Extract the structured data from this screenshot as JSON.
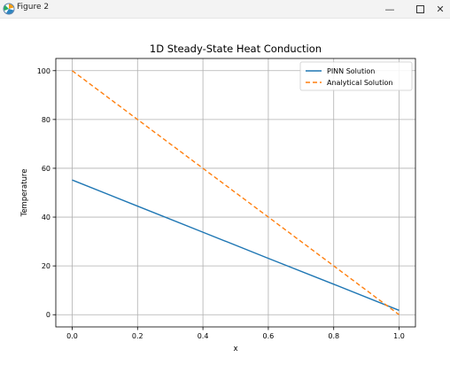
{
  "window": {
    "title": "Figure 2",
    "minimize_glyph": "—",
    "close_glyph": "✕",
    "icon": "matplotlib-figure-icon"
  },
  "chart_data": {
    "type": "line",
    "title": "1D Steady-State Heat Conduction",
    "xlabel": "x",
    "ylabel": "Temperature",
    "xlim": [
      -0.05,
      1.05
    ],
    "ylim": [
      -5,
      105
    ],
    "xticks": [
      0.0,
      0.2,
      0.4,
      0.6,
      0.8,
      1.0
    ],
    "xtick_labels": [
      "0.0",
      "0.2",
      "0.4",
      "0.6",
      "0.8",
      "1.0"
    ],
    "yticks": [
      0,
      20,
      40,
      60,
      80,
      100
    ],
    "ytick_labels": [
      "0",
      "20",
      "40",
      "60",
      "80",
      "100"
    ],
    "grid": true,
    "legend_position": "top-right",
    "series": [
      {
        "name": "PINN Solution",
        "color": "#1f77b4",
        "linestyle": "solid",
        "x": [
          0.0,
          0.2,
          0.4,
          0.6,
          0.8,
          1.0
        ],
        "y": [
          55.2,
          44.5,
          33.8,
          23.1,
          12.5,
          1.8
        ]
      },
      {
        "name": "Analytical Solution",
        "color": "#ff7f0e",
        "linestyle": "dashed",
        "x": [
          0.0,
          0.2,
          0.4,
          0.6,
          0.8,
          1.0
        ],
        "y": [
          100,
          80,
          60,
          40,
          20,
          0
        ]
      }
    ]
  }
}
